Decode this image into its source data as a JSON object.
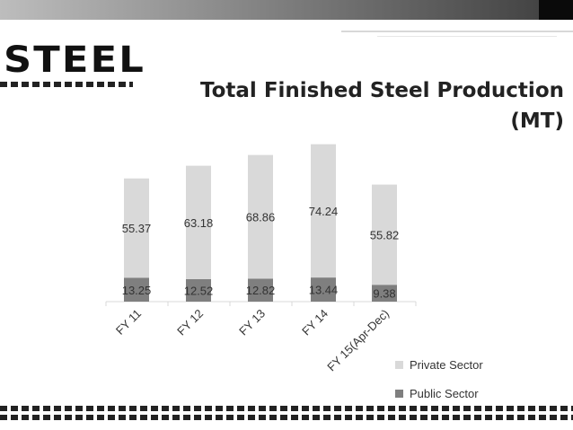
{
  "logo": "STEEL",
  "title_line1": "Total Finished Steel Production",
  "title_line2": "(MT)",
  "chart_data": {
    "type": "bar",
    "stacked": true,
    "categories": [
      "FY 11",
      "FY 12",
      "FY 13",
      "FY 14",
      "FY 15(Apr-Dec)"
    ],
    "series": [
      {
        "name": "Public Sector",
        "values": [
          13.25,
          12.52,
          12.82,
          13.44,
          9.38
        ],
        "color": "#7f7f7f"
      },
      {
        "name": "Private Sector",
        "values": [
          55.37,
          63.18,
          68.86,
          74.24,
          55.82
        ],
        "color": "#d9d9d9"
      }
    ],
    "legend_position": "bottom-right",
    "grid": false
  },
  "colors": {
    "text": "#333333",
    "accent": "#222222"
  }
}
